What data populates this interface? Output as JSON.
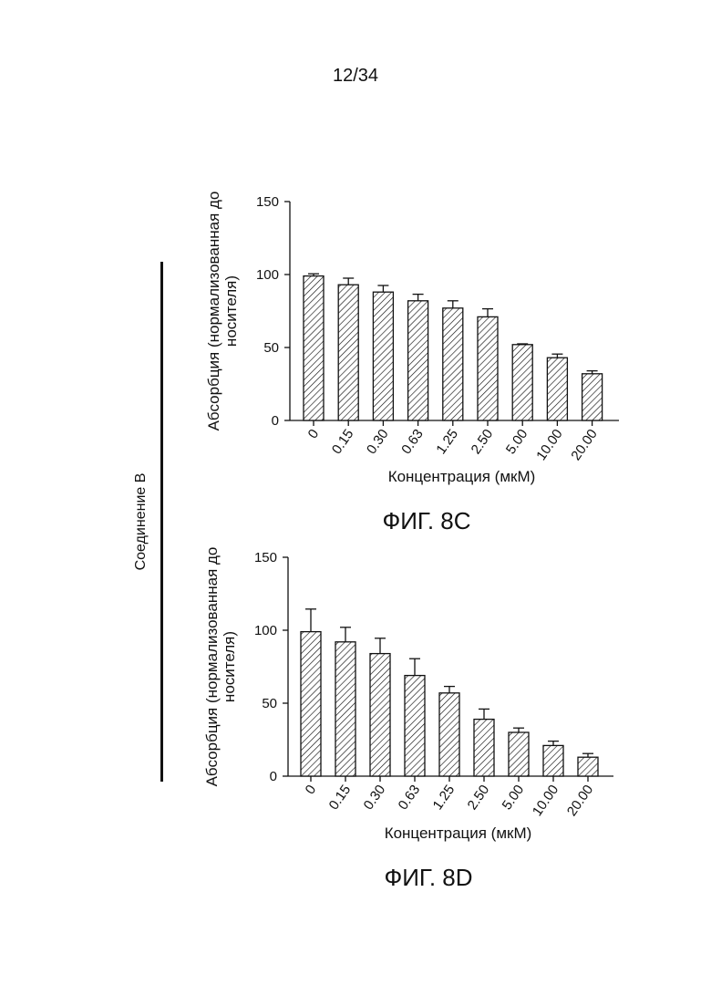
{
  "page": {
    "number": "12/34",
    "side_label": "Соединение В"
  },
  "colors": {
    "ink": "#111111",
    "bar_fill": "#ffffff"
  },
  "chart_data": [
    {
      "type": "bar",
      "caption": "ФИГ. 8С",
      "ylabel": "Абсорбция (нормализованная до носителя)",
      "xlabel": "Концентрация (мкМ)",
      "ylim": [
        0,
        150
      ],
      "yticks": [
        0,
        50,
        100,
        150
      ],
      "categories": [
        "0",
        "0.15",
        "0.30",
        "0.63",
        "1.25",
        "2.50",
        "5.00",
        "10.00",
        "20.00"
      ],
      "values": [
        99,
        93,
        88,
        82,
        77,
        71,
        52,
        43,
        32
      ],
      "errors": [
        1.5,
        4.5,
        4.5,
        4.5,
        5,
        5.5,
        0.5,
        2.5,
        2
      ],
      "bar_pattern": "diagonal-hatch",
      "grid": false
    },
    {
      "type": "bar",
      "caption": "ФИГ. 8D",
      "ylabel": "Абсорбция (нормализованная до носителя)",
      "xlabel": "Концентрация (мкМ)",
      "ylim": [
        0,
        150
      ],
      "yticks": [
        0,
        50,
        100,
        150
      ],
      "categories": [
        "0",
        "0.15",
        "0.30",
        "0.63",
        "1.25",
        "2.50",
        "5.00",
        "10.00",
        "20.00"
      ],
      "values": [
        99,
        92,
        84,
        69,
        57,
        39,
        30,
        21,
        13
      ],
      "errors": [
        15.5,
        10,
        10.5,
        11.5,
        4.5,
        7,
        3,
        3,
        2.5
      ],
      "bar_pattern": "diagonal-hatch",
      "grid": false
    }
  ]
}
